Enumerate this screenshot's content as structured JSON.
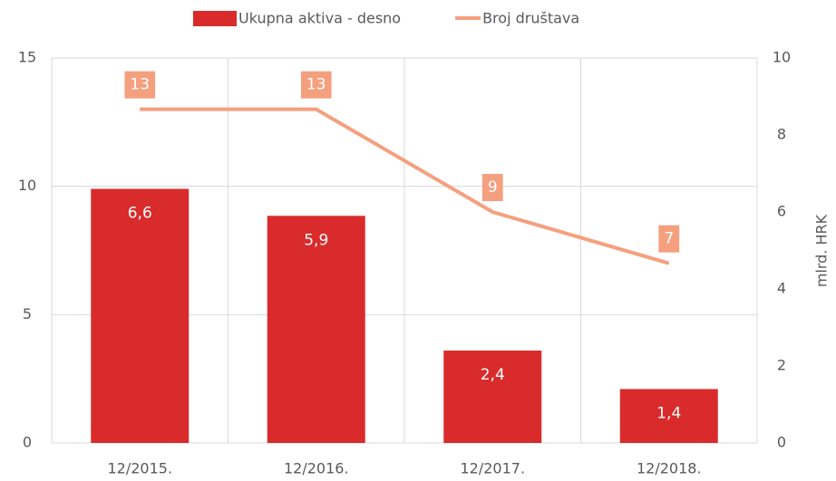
{
  "chart_data": {
    "type": "bar_line",
    "categories": [
      "12/2015.",
      "12/2016.",
      "12/2017.",
      "12/2018."
    ],
    "series": [
      {
        "name": "Ukupna aktiva - desno",
        "type": "bar",
        "axis": "y2",
        "color": "#d92b2b",
        "values": [
          6.6,
          5.9,
          2.4,
          1.4
        ],
        "value_labels": [
          "6,6",
          "5,9",
          "2,4",
          "1,4"
        ]
      },
      {
        "name": "Broj društava",
        "type": "line",
        "axis": "y",
        "color": "#f4a07f",
        "values": [
          13,
          13,
          9,
          7
        ]
      }
    ],
    "ylim": [
      0,
      15
    ],
    "yticks": [
      0,
      5,
      10,
      15
    ],
    "y2lim": [
      0,
      10
    ],
    "y2ticks": [
      0,
      2,
      4,
      6,
      8,
      10
    ],
    "y2label": "mlrd. HRK",
    "grid": true,
    "legend": "top"
  }
}
